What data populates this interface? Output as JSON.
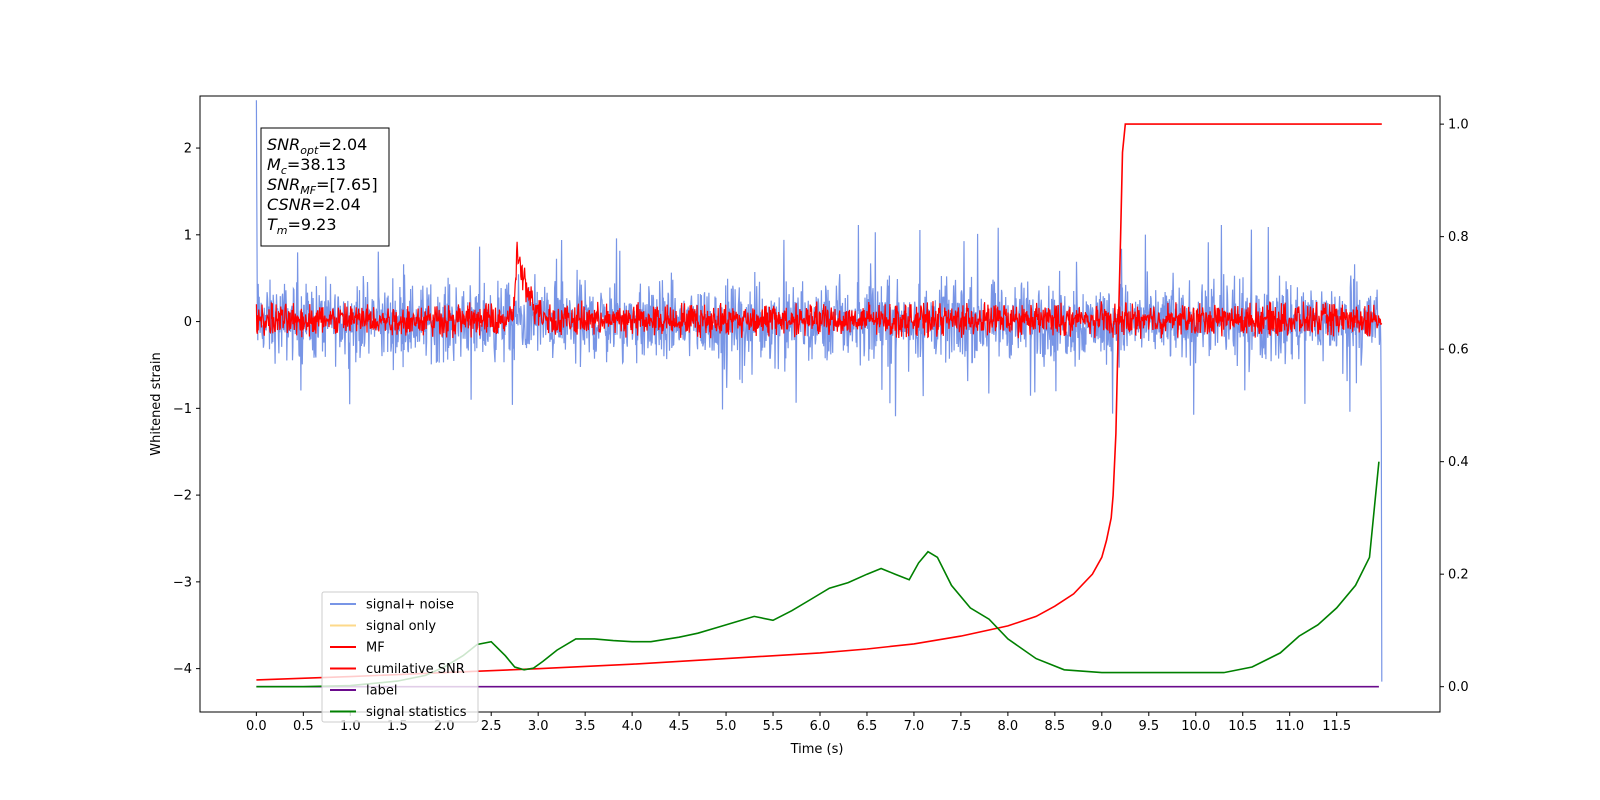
{
  "chart_data": {
    "type": "line",
    "xlabel": "Time (s)",
    "ylabel": "Whitened strain",
    "xlim": [
      -0.6,
      12.6
    ],
    "ylim_left": [
      -4.5,
      2.6
    ],
    "ylim_right": [
      -0.045,
      1.05
    ],
    "x_ticks": [
      "0.0",
      "0.5",
      "1.0",
      "1.5",
      "2.0",
      "2.5",
      "3.0",
      "3.5",
      "4.0",
      "4.5",
      "5.0",
      "5.5",
      "6.0",
      "6.5",
      "7.0",
      "7.5",
      "8.0",
      "8.5",
      "9.0",
      "9.5",
      "10.0",
      "10.5",
      "11.0",
      "11.5"
    ],
    "y_ticks_left": [
      "2",
      "1",
      "0",
      "−1",
      "−2",
      "−3",
      "−4"
    ],
    "y_ticks_right": [
      "1.0",
      "0.8",
      "0.6",
      "0.4",
      "0.2",
      "0.0"
    ],
    "annotations": [
      {
        "base": "SNR",
        "sub": "opt",
        "rest": "=2.04"
      },
      {
        "base": "M",
        "sub": "c",
        "rest": "=38.13"
      },
      {
        "base": "SNR",
        "sub": "MF",
        "rest": "=[7.65]"
      },
      {
        "base": "CSNR",
        "sub": "",
        "rest": "=2.04"
      },
      {
        "base": "T",
        "sub": "m",
        "rest": "=9.23"
      }
    ],
    "legend": {
      "placement": "lower-left",
      "entries": [
        {
          "label": "signal+ noise",
          "color": "#7895e6"
        },
        {
          "label": "signal only",
          "color": "#fdd98a"
        },
        {
          "label": "MF",
          "color": "#ff0000"
        },
        {
          "label": "cumilative SNR",
          "color": "#ff0000"
        },
        {
          "label": "label",
          "color": "#6a0b8c"
        },
        {
          "label": "signal statistics",
          "color": "#008000"
        }
      ]
    },
    "series": [
      {
        "name": "signal+ noise",
        "axis": "left",
        "color": "#7895e6",
        "kind": "noise",
        "x_range": [
          0.0,
          11.98
        ],
        "center": 0.0,
        "typical_range": [
          -0.55,
          0.75
        ],
        "extreme_range": [
          -1.1,
          1.15
        ],
        "edge_spikes": {
          "start_max": 2.55,
          "end_min": -4.15
        }
      },
      {
        "name": "MF",
        "axis": "left",
        "color": "#ff0000",
        "kind": "noise",
        "x_range": [
          0.0,
          11.98
        ],
        "center": 0.02,
        "typical_range": [
          -0.2,
          0.25
        ],
        "peak": {
          "x": 2.78,
          "y": 1.0
        }
      },
      {
        "name": "cumilative SNR",
        "axis": "right",
        "color": "#ff0000",
        "x": [
          0.0,
          1.0,
          2.0,
          3.0,
          4.0,
          5.0,
          6.0,
          6.5,
          7.0,
          7.5,
          8.0,
          8.3,
          8.5,
          8.7,
          8.9,
          9.0,
          9.05,
          9.1,
          9.12,
          9.15,
          9.17,
          9.2,
          9.22,
          9.25,
          9.3,
          11.98
        ],
        "y": [
          0.012,
          0.018,
          0.025,
          0.032,
          0.04,
          0.05,
          0.06,
          0.067,
          0.076,
          0.09,
          0.108,
          0.125,
          0.143,
          0.165,
          0.2,
          0.23,
          0.26,
          0.3,
          0.34,
          0.45,
          0.6,
          0.8,
          0.95,
          1.0,
          1.0,
          1.0
        ]
      },
      {
        "name": "label",
        "axis": "right",
        "color": "#6a0b8c",
        "x": [
          0.0,
          11.95
        ],
        "y": [
          0.0,
          0.0
        ]
      },
      {
        "name": "signal statistics",
        "axis": "right",
        "color": "#008000",
        "x": [
          0.0,
          0.5,
          1.0,
          1.5,
          1.8,
          2.0,
          2.2,
          2.35,
          2.5,
          2.65,
          2.75,
          2.85,
          2.95,
          3.05,
          3.2,
          3.4,
          3.6,
          3.8,
          4.0,
          4.2,
          4.5,
          4.7,
          4.9,
          5.1,
          5.3,
          5.5,
          5.7,
          5.9,
          6.1,
          6.3,
          6.5,
          6.65,
          6.8,
          6.95,
          7.05,
          7.15,
          7.25,
          7.4,
          7.6,
          7.8,
          8.0,
          8.3,
          8.6,
          9.0,
          9.5,
          10.0,
          10.3,
          10.6,
          10.9,
          11.1,
          11.3,
          11.5,
          11.7,
          11.85,
          11.95
        ],
        "y": [
          0.0,
          0.0,
          0.002,
          0.01,
          0.02,
          0.035,
          0.055,
          0.075,
          0.08,
          0.055,
          0.035,
          0.03,
          0.033,
          0.045,
          0.065,
          0.085,
          0.085,
          0.082,
          0.08,
          0.08,
          0.088,
          0.095,
          0.105,
          0.115,
          0.125,
          0.118,
          0.135,
          0.155,
          0.175,
          0.185,
          0.2,
          0.21,
          0.2,
          0.19,
          0.22,
          0.24,
          0.23,
          0.18,
          0.14,
          0.12,
          0.085,
          0.05,
          0.03,
          0.025,
          0.025,
          0.025,
          0.025,
          0.035,
          0.06,
          0.09,
          0.11,
          0.14,
          0.18,
          0.23,
          0.4
        ]
      }
    ]
  }
}
